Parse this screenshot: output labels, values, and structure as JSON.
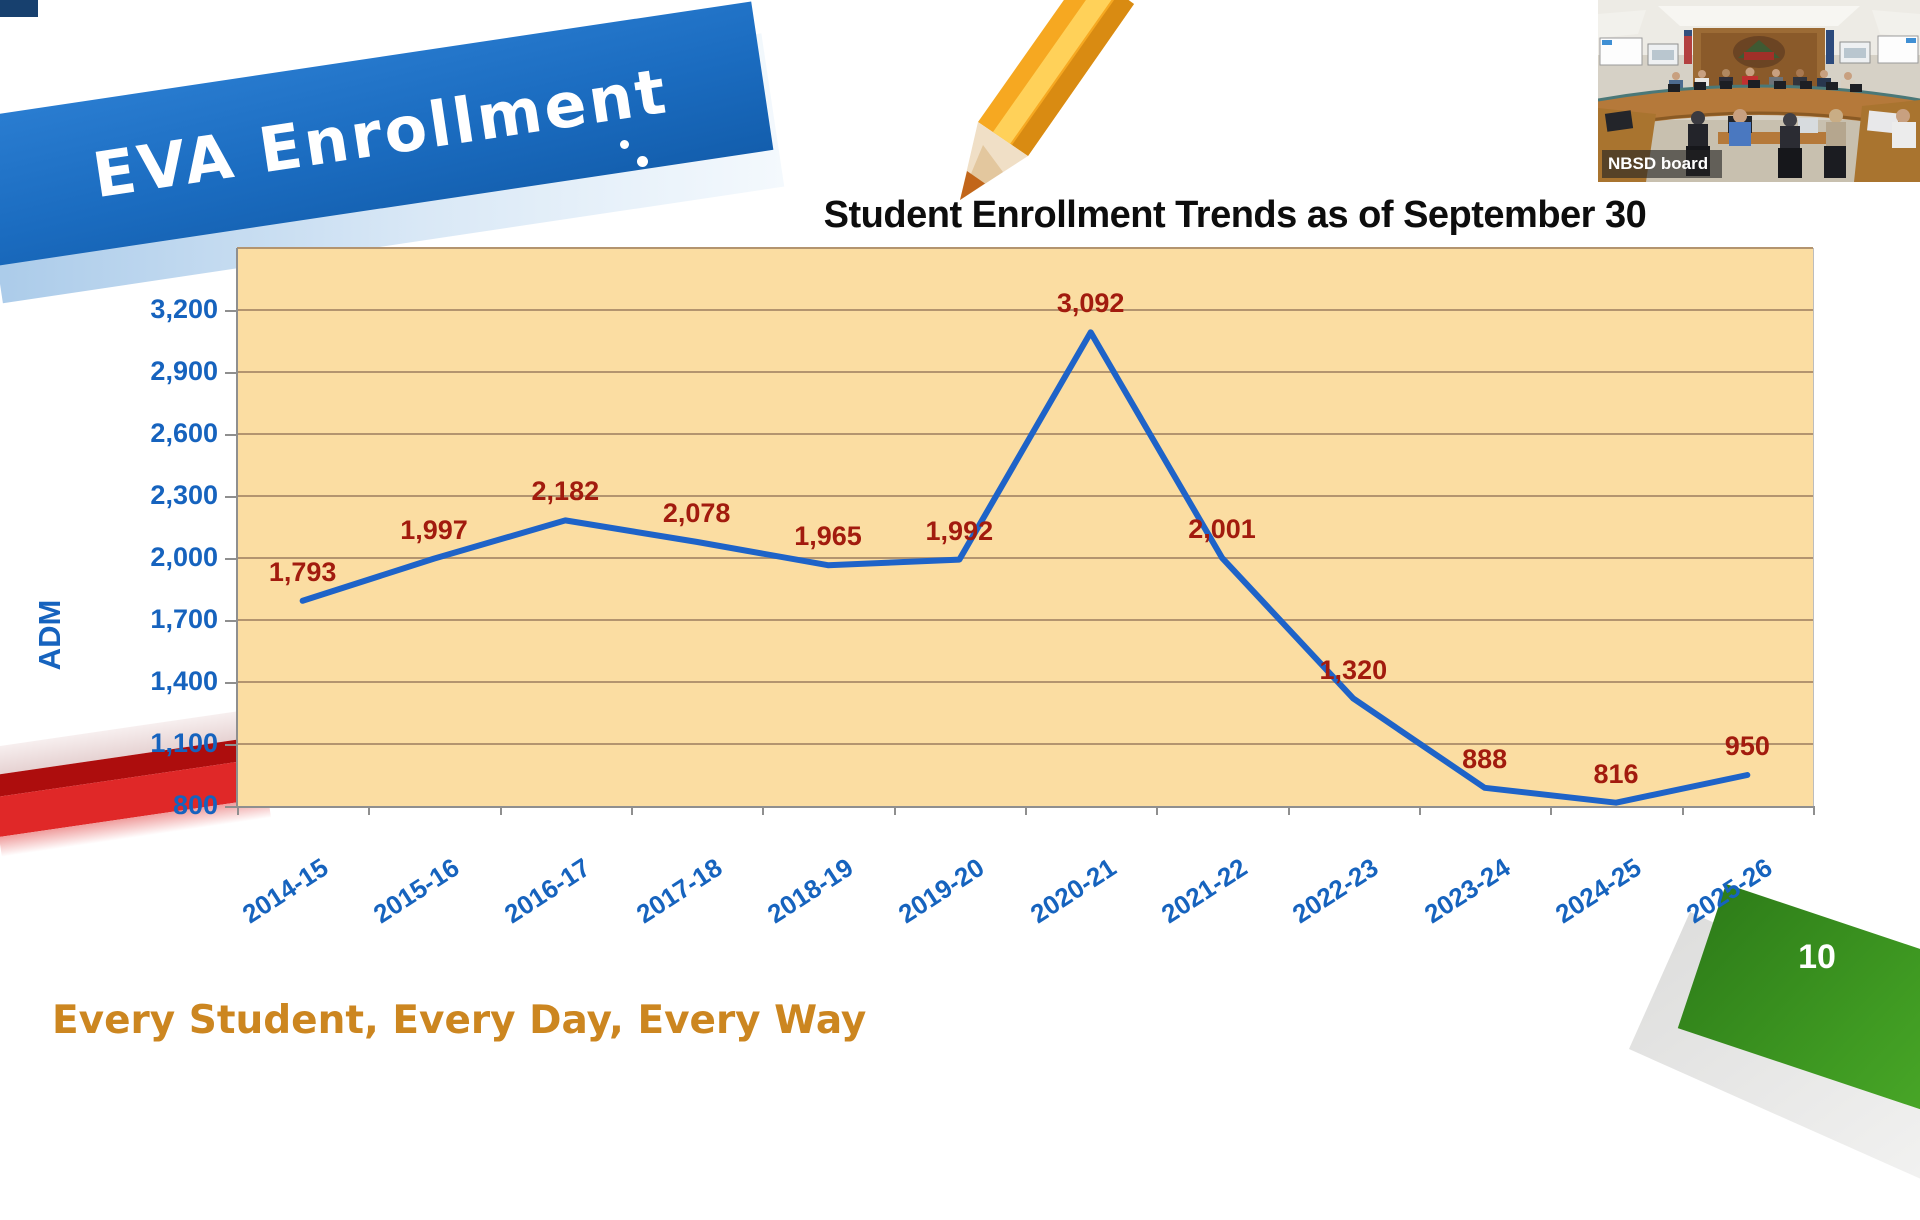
{
  "slide": {
    "banner_title": "EVA Enrollment",
    "tagline": "Every Student, Every Day, Every Way",
    "page_number": "10",
    "video_label": "NBSD board"
  },
  "chart_data": {
    "type": "line",
    "title": "Student Enrollment Trends as of September 30",
    "ylabel": "ADM",
    "categories": [
      "2014-15",
      "2015-16",
      "2016-17",
      "2017-18",
      "2018-19",
      "2019-20",
      "2020-21",
      "2021-22",
      "2022-23",
      "2023-24",
      "2024-25",
      "2025-26"
    ],
    "values": [
      1793,
      1997,
      2182,
      2078,
      1965,
      1992,
      3092,
      2001,
      1320,
      888,
      816,
      950
    ],
    "point_labels": [
      "1,793",
      "1,997",
      "2,182",
      "2,078",
      "1,965",
      "1,992",
      "3,092",
      "2,001",
      "1,320",
      "888",
      "816",
      "950"
    ],
    "y_tick_labels": [
      "800",
      "1,100",
      "1,400",
      "1,700",
      "2,000",
      "2,300",
      "2,600",
      "2,900",
      "3,200"
    ],
    "ylim": [
      800,
      3500
    ],
    "grid_step": 300,
    "grid_on": true,
    "legend": "none",
    "colors": {
      "line": "#1e63c8",
      "point_label": "#a21b0e",
      "plot_background": "#fbdda2",
      "gridline": "#b3946f",
      "axis_text": "#1663be"
    }
  }
}
